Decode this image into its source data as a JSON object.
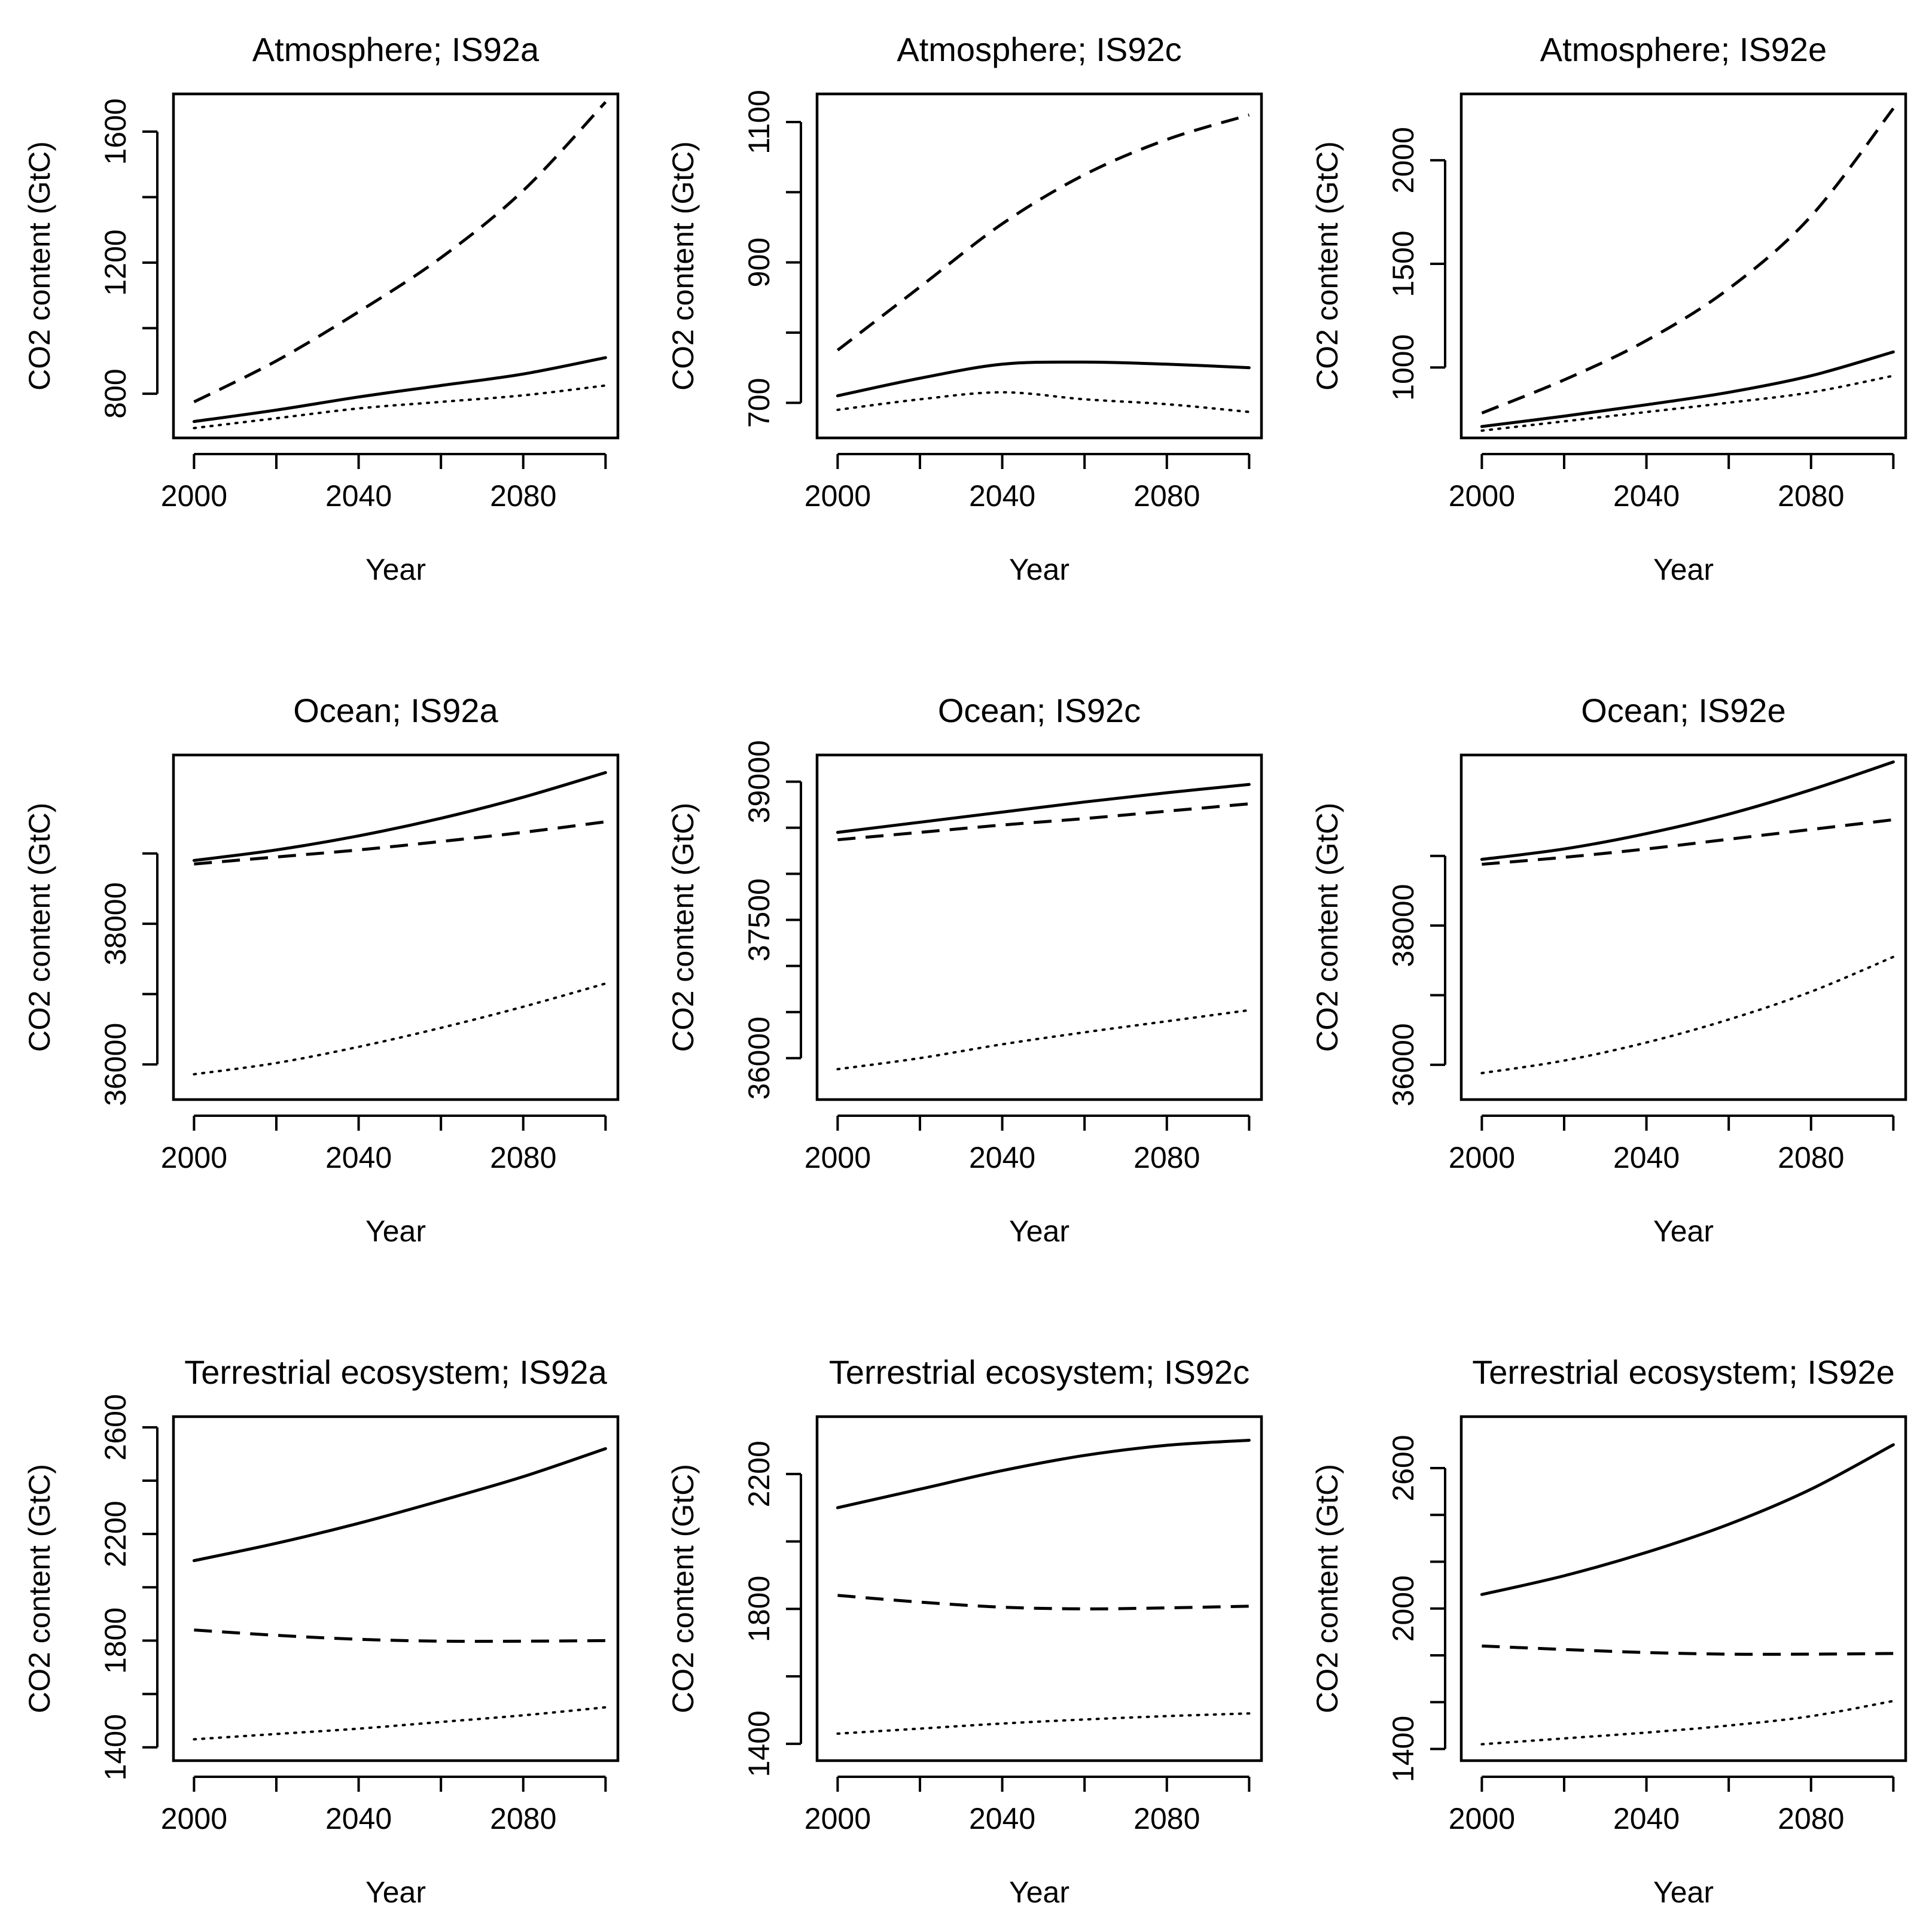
{
  "figure": {
    "description_rows": "Atmosphere / Ocean / Terrestrial ecosystem",
    "line_color": "#000000"
  },
  "chart_data": [
    {
      "type": "line",
      "title": "Atmosphere; IS92a",
      "xlabel": "Year",
      "ylabel": "CO2 content (GtC)",
      "xlim": [
        1995,
        2103
      ],
      "ylim": [
        665,
        1715
      ],
      "xticks": [
        2000,
        2020,
        2040,
        2060,
        2080,
        2100
      ],
      "xtick_labels": [
        "2000",
        "",
        "2040",
        "",
        "2080",
        ""
      ],
      "yticks": [
        800,
        1000,
        1200,
        1400,
        1600
      ],
      "ytick_labels": [
        "800",
        "",
        "1200",
        "",
        "1600"
      ],
      "series": [
        {
          "name": "solid",
          "dash": "solid",
          "x": [
            2000,
            2020,
            2040,
            2060,
            2080,
            2100
          ],
          "y": [
            715,
            750,
            790,
            825,
            860,
            910
          ]
        },
        {
          "name": "dashed",
          "dash": "dashed",
          "x": [
            2000,
            2020,
            2040,
            2060,
            2080,
            2100
          ],
          "y": [
            775,
            900,
            1050,
            1215,
            1420,
            1690
          ]
        },
        {
          "name": "dotted",
          "dash": "dotted",
          "x": [
            2000,
            2020,
            2040,
            2060,
            2080,
            2100
          ],
          "y": [
            695,
            725,
            755,
            775,
            795,
            825
          ]
        }
      ]
    },
    {
      "type": "line",
      "title": "Atmosphere; IS92c",
      "xlabel": "Year",
      "ylabel": "CO2 content (GtC)",
      "xlim": [
        1995,
        2103
      ],
      "ylim": [
        650,
        1140
      ],
      "xticks": [
        2000,
        2020,
        2040,
        2060,
        2080,
        2100
      ],
      "xtick_labels": [
        "2000",
        "",
        "2040",
        "",
        "2080",
        ""
      ],
      "yticks": [
        700,
        800,
        900,
        1000,
        1100
      ],
      "ytick_labels": [
        "700",
        "",
        "900",
        "",
        "1100"
      ],
      "series": [
        {
          "name": "solid",
          "dash": "solid",
          "x": [
            2000,
            2020,
            2040,
            2060,
            2080,
            2100
          ],
          "y": [
            710,
            735,
            755,
            758,
            755,
            750
          ]
        },
        {
          "name": "dashed",
          "dash": "dashed",
          "x": [
            2000,
            2020,
            2040,
            2060,
            2080,
            2100
          ],
          "y": [
            775,
            865,
            955,
            1025,
            1075,
            1110
          ]
        },
        {
          "name": "dotted",
          "dash": "dotted",
          "x": [
            2000,
            2020,
            2040,
            2060,
            2080,
            2100
          ],
          "y": [
            690,
            705,
            715,
            705,
            698,
            687
          ]
        }
      ]
    },
    {
      "type": "line",
      "title": "Atmosphere; IS92e",
      "xlabel": "Year",
      "ylabel": "CO2 content (GtC)",
      "xlim": [
        1995,
        2103
      ],
      "ylim": [
        660,
        2320
      ],
      "xticks": [
        2000,
        2020,
        2040,
        2060,
        2080,
        2100
      ],
      "xtick_labels": [
        "2000",
        "",
        "2040",
        "",
        "2080",
        ""
      ],
      "yticks": [
        1000,
        1500,
        2000
      ],
      "ytick_labels": [
        "1000",
        "1500",
        "2000"
      ],
      "series": [
        {
          "name": "solid",
          "dash": "solid",
          "x": [
            2000,
            2020,
            2040,
            2060,
            2080,
            2100
          ],
          "y": [
            715,
            765,
            820,
            880,
            960,
            1075
          ]
        },
        {
          "name": "dashed",
          "dash": "dashed",
          "x": [
            2000,
            2020,
            2040,
            2060,
            2080,
            2100
          ],
          "y": [
            780,
            940,
            1130,
            1380,
            1730,
            2250
          ]
        },
        {
          "name": "dotted",
          "dash": "dotted",
          "x": [
            2000,
            2020,
            2040,
            2060,
            2080,
            2100
          ],
          "y": [
            695,
            740,
            785,
            830,
            880,
            960
          ]
        }
      ]
    },
    {
      "type": "line",
      "title": "Ocean; IS92a",
      "xlabel": "Year",
      "ylabel": "CO2 content (GtC)",
      "xlim": [
        1995,
        2103
      ],
      "ylim": [
        35500,
        40400
      ],
      "xticks": [
        2000,
        2020,
        2040,
        2060,
        2080,
        2100
      ],
      "xtick_labels": [
        "2000",
        "",
        "2040",
        "",
        "2080",
        ""
      ],
      "yticks": [
        36000,
        37000,
        38000,
        39000
      ],
      "ytick_labels": [
        "36000",
        "",
        "38000",
        ""
      ],
      "series": [
        {
          "name": "solid",
          "dash": "solid",
          "x": [
            2000,
            2020,
            2040,
            2060,
            2080,
            2100
          ],
          "y": [
            38900,
            39050,
            39250,
            39500,
            39800,
            40150
          ]
        },
        {
          "name": "dashed",
          "dash": "dashed",
          "x": [
            2000,
            2020,
            2040,
            2060,
            2080,
            2100
          ],
          "y": [
            38850,
            38950,
            39050,
            39170,
            39300,
            39450
          ]
        },
        {
          "name": "dotted",
          "dash": "dotted",
          "x": [
            2000,
            2020,
            2040,
            2060,
            2080,
            2100
          ],
          "y": [
            35860,
            36020,
            36250,
            36520,
            36820,
            37150
          ]
        }
      ]
    },
    {
      "type": "line",
      "title": "Ocean; IS92c",
      "xlabel": "Year",
      "ylabel": "CO2 content (GtC)",
      "xlim": [
        1995,
        2103
      ],
      "ylim": [
        35550,
        39290
      ],
      "xticks": [
        2000,
        2020,
        2040,
        2060,
        2080,
        2100
      ],
      "xtick_labels": [
        "2000",
        "",
        "2040",
        "",
        "2080",
        ""
      ],
      "yticks": [
        36000,
        36500,
        37000,
        37500,
        38000,
        38500,
        39000
      ],
      "ytick_labels": [
        "36000",
        "",
        "",
        "37500",
        "",
        "",
        "39000"
      ],
      "series": [
        {
          "name": "solid",
          "dash": "solid",
          "x": [
            2000,
            2020,
            2040,
            2060,
            2080,
            2100
          ],
          "y": [
            38450,
            38560,
            38670,
            38780,
            38880,
            38970
          ]
        },
        {
          "name": "dashed",
          "dash": "dashed",
          "x": [
            2000,
            2020,
            2040,
            2060,
            2080,
            2100
          ],
          "y": [
            38370,
            38450,
            38530,
            38600,
            38680,
            38760
          ]
        },
        {
          "name": "dotted",
          "dash": "dotted",
          "x": [
            2000,
            2020,
            2040,
            2060,
            2080,
            2100
          ],
          "y": [
            35880,
            36000,
            36150,
            36280,
            36400,
            36520
          ]
        }
      ]
    },
    {
      "type": "line",
      "title": "Ocean; IS92e",
      "xlabel": "Year",
      "ylabel": "CO2 content (GtC)",
      "xlim": [
        1995,
        2103
      ],
      "ylim": [
        35500,
        40450
      ],
      "xticks": [
        2000,
        2020,
        2040,
        2060,
        2080,
        2100
      ],
      "xtick_labels": [
        "2000",
        "",
        "2040",
        "",
        "2080",
        ""
      ],
      "yticks": [
        36000,
        37000,
        38000,
        39000
      ],
      "ytick_labels": [
        "36000",
        "",
        "38000",
        ""
      ],
      "series": [
        {
          "name": "solid",
          "dash": "solid",
          "x": [
            2000,
            2020,
            2040,
            2060,
            2080,
            2100
          ],
          "y": [
            38950,
            39100,
            39320,
            39600,
            39950,
            40350
          ]
        },
        {
          "name": "dashed",
          "dash": "dashed",
          "x": [
            2000,
            2020,
            2040,
            2060,
            2080,
            2100
          ],
          "y": [
            38880,
            38980,
            39100,
            39240,
            39380,
            39520
          ]
        },
        {
          "name": "dotted",
          "dash": "dotted",
          "x": [
            2000,
            2020,
            2040,
            2060,
            2080,
            2100
          ],
          "y": [
            35880,
            36060,
            36320,
            36650,
            37050,
            37550
          ]
        }
      ]
    },
    {
      "type": "line",
      "title": "Terrestrial ecosystem; IS92a",
      "xlabel": "Year",
      "ylabel": "CO2 content (GtC)",
      "xlim": [
        1995,
        2103
      ],
      "ylim": [
        1350,
        2640
      ],
      "xticks": [
        2000,
        2020,
        2040,
        2060,
        2080,
        2100
      ],
      "xtick_labels": [
        "2000",
        "",
        "2040",
        "",
        "2080",
        ""
      ],
      "yticks": [
        1400,
        1600,
        1800,
        2000,
        2200,
        2400,
        2600
      ],
      "ytick_labels": [
        "1400",
        "",
        "1800",
        "",
        "2200",
        "",
        "2600"
      ],
      "series": [
        {
          "name": "solid",
          "dash": "solid",
          "x": [
            2000,
            2020,
            2040,
            2060,
            2080,
            2100
          ],
          "y": [
            2100,
            2165,
            2240,
            2325,
            2415,
            2520
          ]
        },
        {
          "name": "dashed",
          "dash": "dashed",
          "x": [
            2000,
            2020,
            2040,
            2060,
            2080,
            2100
          ],
          "y": [
            1840,
            1820,
            1805,
            1798,
            1798,
            1800
          ]
        },
        {
          "name": "dotted",
          "dash": "dotted",
          "x": [
            2000,
            2020,
            2040,
            2060,
            2080,
            2100
          ],
          "y": [
            1430,
            1450,
            1470,
            1495,
            1520,
            1550
          ]
        }
      ]
    },
    {
      "type": "line",
      "title": "Terrestrial ecosystem; IS92c",
      "xlabel": "Year",
      "ylabel": "CO2 content (GtC)",
      "xlim": [
        1995,
        2103
      ],
      "ylim": [
        1350,
        2370
      ],
      "xticks": [
        2000,
        2020,
        2040,
        2060,
        2080,
        2100
      ],
      "xtick_labels": [
        "2000",
        "",
        "2040",
        "",
        "2080",
        ""
      ],
      "yticks": [
        1400,
        1600,
        1800,
        2000,
        2200
      ],
      "ytick_labels": [
        "1400",
        "",
        "1800",
        "",
        "2200"
      ],
      "series": [
        {
          "name": "solid",
          "dash": "solid",
          "x": [
            2000,
            2020,
            2040,
            2060,
            2080,
            2100
          ],
          "y": [
            2100,
            2155,
            2210,
            2255,
            2285,
            2300
          ]
        },
        {
          "name": "dashed",
          "dash": "dashed",
          "x": [
            2000,
            2020,
            2040,
            2060,
            2080,
            2100
          ],
          "y": [
            1840,
            1820,
            1805,
            1800,
            1803,
            1808
          ]
        },
        {
          "name": "dotted",
          "dash": "dotted",
          "x": [
            2000,
            2020,
            2040,
            2060,
            2080,
            2100
          ],
          "y": [
            1430,
            1445,
            1460,
            1472,
            1482,
            1490
          ]
        }
      ]
    },
    {
      "type": "line",
      "title": "Terrestrial ecosystem; IS92e",
      "xlabel": "Year",
      "ylabel": "CO2 content (GtC)",
      "xlim": [
        1995,
        2103
      ],
      "ylim": [
        1350,
        2820
      ],
      "xticks": [
        2000,
        2020,
        2040,
        2060,
        2080,
        2100
      ],
      "xtick_labels": [
        "2000",
        "",
        "2040",
        "",
        "2080",
        ""
      ],
      "yticks": [
        1400,
        1600,
        1800,
        2000,
        2200,
        2400,
        2600
      ],
      "ytick_labels": [
        "1400",
        "",
        "",
        "2000",
        "",
        "",
        "2600"
      ],
      "series": [
        {
          "name": "solid",
          "dash": "solid",
          "x": [
            2000,
            2020,
            2040,
            2060,
            2080,
            2100
          ],
          "y": [
            2060,
            2140,
            2240,
            2360,
            2510,
            2700
          ]
        },
        {
          "name": "dashed",
          "dash": "dashed",
          "x": [
            2000,
            2020,
            2040,
            2060,
            2080,
            2100
          ],
          "y": [
            1840,
            1825,
            1812,
            1805,
            1805,
            1808
          ]
        },
        {
          "name": "dotted",
          "dash": "dotted",
          "x": [
            2000,
            2020,
            2040,
            2060,
            2080,
            2100
          ],
          "y": [
            1420,
            1445,
            1470,
            1500,
            1540,
            1605
          ]
        }
      ]
    }
  ]
}
